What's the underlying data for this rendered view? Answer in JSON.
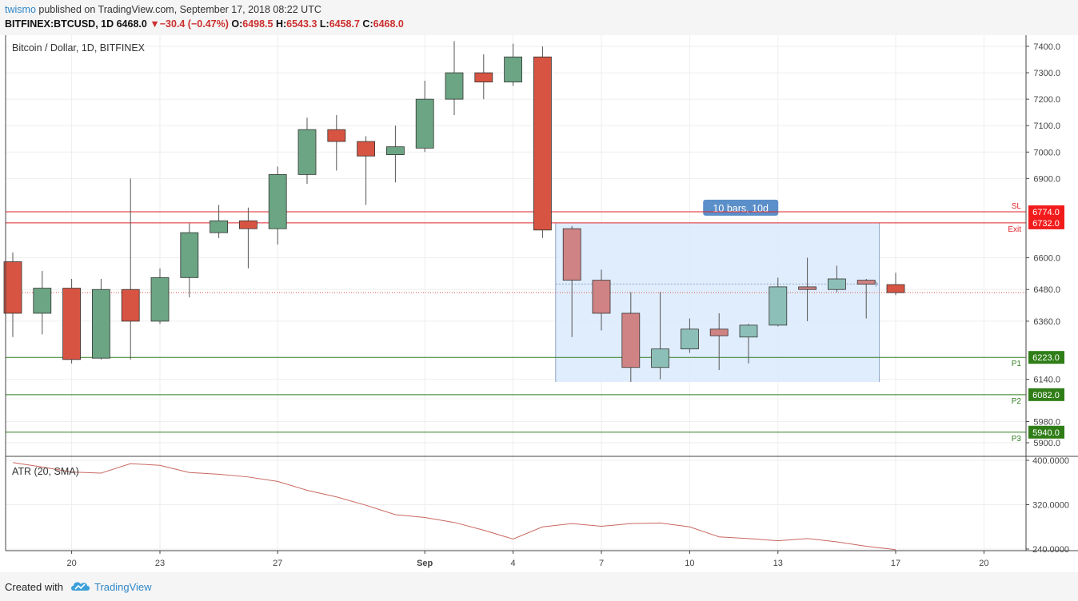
{
  "header": {
    "author": "twismo",
    "published_text": "published on TradingView.com, September 17, 2018 08:22 UTC",
    "symbol": "BITFINEX:BTCUSD, 1D",
    "last": "6468.0",
    "change": "−30.4 (−0.47%)",
    "o_label": "O:",
    "o": "6498.5",
    "h_label": "H:",
    "h": "6543.3",
    "l_label": "L:",
    "l": "6458.7",
    "c_label": "C:",
    "c": "6468.0"
  },
  "footer": {
    "created_with": "Created with",
    "brand": "TradingView"
  },
  "colors": {
    "up": "#6ba583",
    "down": "#d75442",
    "up_faded": "#8cbfb7",
    "down_faded": "#d08384",
    "sl_line": "#e0242b",
    "target_line": "#2e7d1e",
    "atr_line": "#c9675f",
    "range_fill": "#dbeafd",
    "range_label_bg": "#5b8fc9"
  },
  "chart_data": [
    {
      "type": "candlestick",
      "title": "Bitcoin / Dollar, 1D, BITFINEX",
      "x_tick_labels": [
        "20",
        "23",
        "27",
        "Sep",
        "4",
        "7",
        "10",
        "13",
        "17",
        "20"
      ],
      "x_tick_dates": [
        "2018-08-20",
        "2018-08-23",
        "2018-08-27",
        "2018-09-01",
        "2018-09-04",
        "2018-09-07",
        "2018-09-10",
        "2018-09-13",
        "2018-09-17",
        "2018-09-20"
      ],
      "y_tick_labels": [
        "5900.0",
        "5980.0",
        "6140.0",
        "6360.0",
        "6480.0",
        "6600.0",
        "6900.0",
        "7000.0",
        "7100.0",
        "7200.0",
        "7300.0",
        "7400.0"
      ],
      "ylim": [
        5875,
        7435
      ],
      "candles": [
        {
          "date": "2018-08-18",
          "o": 6585,
          "h": 6620,
          "l": 6300,
          "c": 6390
        },
        {
          "date": "2018-08-19",
          "o": 6390,
          "h": 6550,
          "l": 6310,
          "c": 6485
        },
        {
          "date": "2018-08-20",
          "o": 6485,
          "h": 6520,
          "l": 6200,
          "c": 6215
        },
        {
          "date": "2018-08-21",
          "o": 6220,
          "h": 6520,
          "l": 6215,
          "c": 6480
        },
        {
          "date": "2018-08-22",
          "o": 6480,
          "h": 6900,
          "l": 6215,
          "c": 6360
        },
        {
          "date": "2018-08-23",
          "o": 6360,
          "h": 6560,
          "l": 6350,
          "c": 6525
        },
        {
          "date": "2018-08-24",
          "o": 6525,
          "h": 6730,
          "l": 6450,
          "c": 6695
        },
        {
          "date": "2018-08-25",
          "o": 6695,
          "h": 6800,
          "l": 6675,
          "c": 6740
        },
        {
          "date": "2018-08-26",
          "o": 6740,
          "h": 6790,
          "l": 6560,
          "c": 6710
        },
        {
          "date": "2018-08-27",
          "o": 6710,
          "h": 6945,
          "l": 6650,
          "c": 6915
        },
        {
          "date": "2018-08-28",
          "o": 6915,
          "h": 7130,
          "l": 6880,
          "c": 7085
        },
        {
          "date": "2018-08-29",
          "o": 7085,
          "h": 7140,
          "l": 6930,
          "c": 7040
        },
        {
          "date": "2018-08-30",
          "o": 7040,
          "h": 7060,
          "l": 6800,
          "c": 6985
        },
        {
          "date": "2018-08-31",
          "o": 6990,
          "h": 7100,
          "l": 6885,
          "c": 7020
        },
        {
          "date": "2018-09-01",
          "o": 7015,
          "h": 7270,
          "l": 7000,
          "c": 7200
        },
        {
          "date": "2018-09-02",
          "o": 7200,
          "h": 7420,
          "l": 7140,
          "c": 7300
        },
        {
          "date": "2018-09-03",
          "o": 7300,
          "h": 7370,
          "l": 7200,
          "c": 7265
        },
        {
          "date": "2018-09-04",
          "o": 7265,
          "h": 7410,
          "l": 7250,
          "c": 7360
        },
        {
          "date": "2018-09-05",
          "o": 7360,
          "h": 7400,
          "l": 6675,
          "c": 6705
        },
        {
          "date": "2018-09-06",
          "o": 6710,
          "h": 6720,
          "l": 6300,
          "c": 6515
        },
        {
          "date": "2018-09-07",
          "o": 6515,
          "h": 6555,
          "l": 6325,
          "c": 6390
        },
        {
          "date": "2018-09-08",
          "o": 6390,
          "h": 6470,
          "l": 6130,
          "c": 6185
        },
        {
          "date": "2018-09-09",
          "o": 6185,
          "h": 6470,
          "l": 6140,
          "c": 6255
        },
        {
          "date": "2018-09-10",
          "o": 6255,
          "h": 6370,
          "l": 6240,
          "c": 6330
        },
        {
          "date": "2018-09-11",
          "o": 6330,
          "h": 6390,
          "l": 6175,
          "c": 6305
        },
        {
          "date": "2018-09-12",
          "o": 6300,
          "h": 6350,
          "l": 6200,
          "c": 6345
        },
        {
          "date": "2018-09-13",
          "o": 6345,
          "h": 6525,
          "l": 6340,
          "c": 6490
        },
        {
          "date": "2018-09-14",
          "o": 6490,
          "h": 6600,
          "l": 6360,
          "c": 6480
        },
        {
          "date": "2018-09-15",
          "o": 6480,
          "h": 6570,
          "l": 6470,
          "c": 6520
        },
        {
          "date": "2018-09-16",
          "o": 6515,
          "h": 6520,
          "l": 6370,
          "c": 6500
        },
        {
          "date": "2018-09-17",
          "o": 6498.5,
          "h": 6543.3,
          "l": 6458.7,
          "c": 6468.0
        }
      ],
      "last_price_line": 6468.0,
      "horizontal_levels": [
        {
          "label": "SL",
          "value": 6774.0,
          "value_label": "6774.0",
          "kind": "stop"
        },
        {
          "label": "Exit",
          "value": 6732.0,
          "value_label": "6732.0",
          "kind": "stop"
        },
        {
          "label": "P1",
          "value": 6223.0,
          "value_label": "6223.0",
          "kind": "target"
        },
        {
          "label": "P2",
          "value": 6082.0,
          "value_label": "6082.0",
          "kind": "target"
        },
        {
          "label": "P3",
          "value": 5940.0,
          "value_label": "5940.0",
          "kind": "target"
        }
      ],
      "date_range": {
        "label": "10 bars, 10d",
        "start": "2018-09-06",
        "end": "2018-09-16",
        "price_top": 6732,
        "price_bottom": 6130
      }
    },
    {
      "type": "line",
      "title": "ATR (20, SMA)",
      "y_tick_labels": [
        "400.0000",
        "320.0000",
        "240.0000"
      ],
      "ylim": [
        237,
        408
      ],
      "series": [
        {
          "x": [
            "2018-08-18",
            "2018-08-19",
            "2018-08-20",
            "2018-08-21",
            "2018-08-22",
            "2018-08-23",
            "2018-08-24",
            "2018-08-25",
            "2018-08-26",
            "2018-08-27",
            "2018-08-28",
            "2018-08-29",
            "2018-08-30",
            "2018-08-31",
            "2018-09-01",
            "2018-09-02",
            "2018-09-03",
            "2018-09-04",
            "2018-09-05",
            "2018-09-06",
            "2018-09-07",
            "2018-09-08",
            "2018-09-09",
            "2018-09-10",
            "2018-09-11",
            "2018-09-12",
            "2018-09-13",
            "2018-09-14",
            "2018-09-15",
            "2018-09-16",
            "2018-09-17"
          ],
          "values": [
            396,
            388,
            379,
            377,
            394,
            391,
            378,
            375,
            370,
            362,
            346,
            334,
            319,
            302,
            297,
            288,
            274,
            258,
            280,
            286,
            281,
            286,
            287,
            280,
            262,
            259,
            255,
            259,
            253,
            245,
            239
          ]
        }
      ]
    }
  ]
}
